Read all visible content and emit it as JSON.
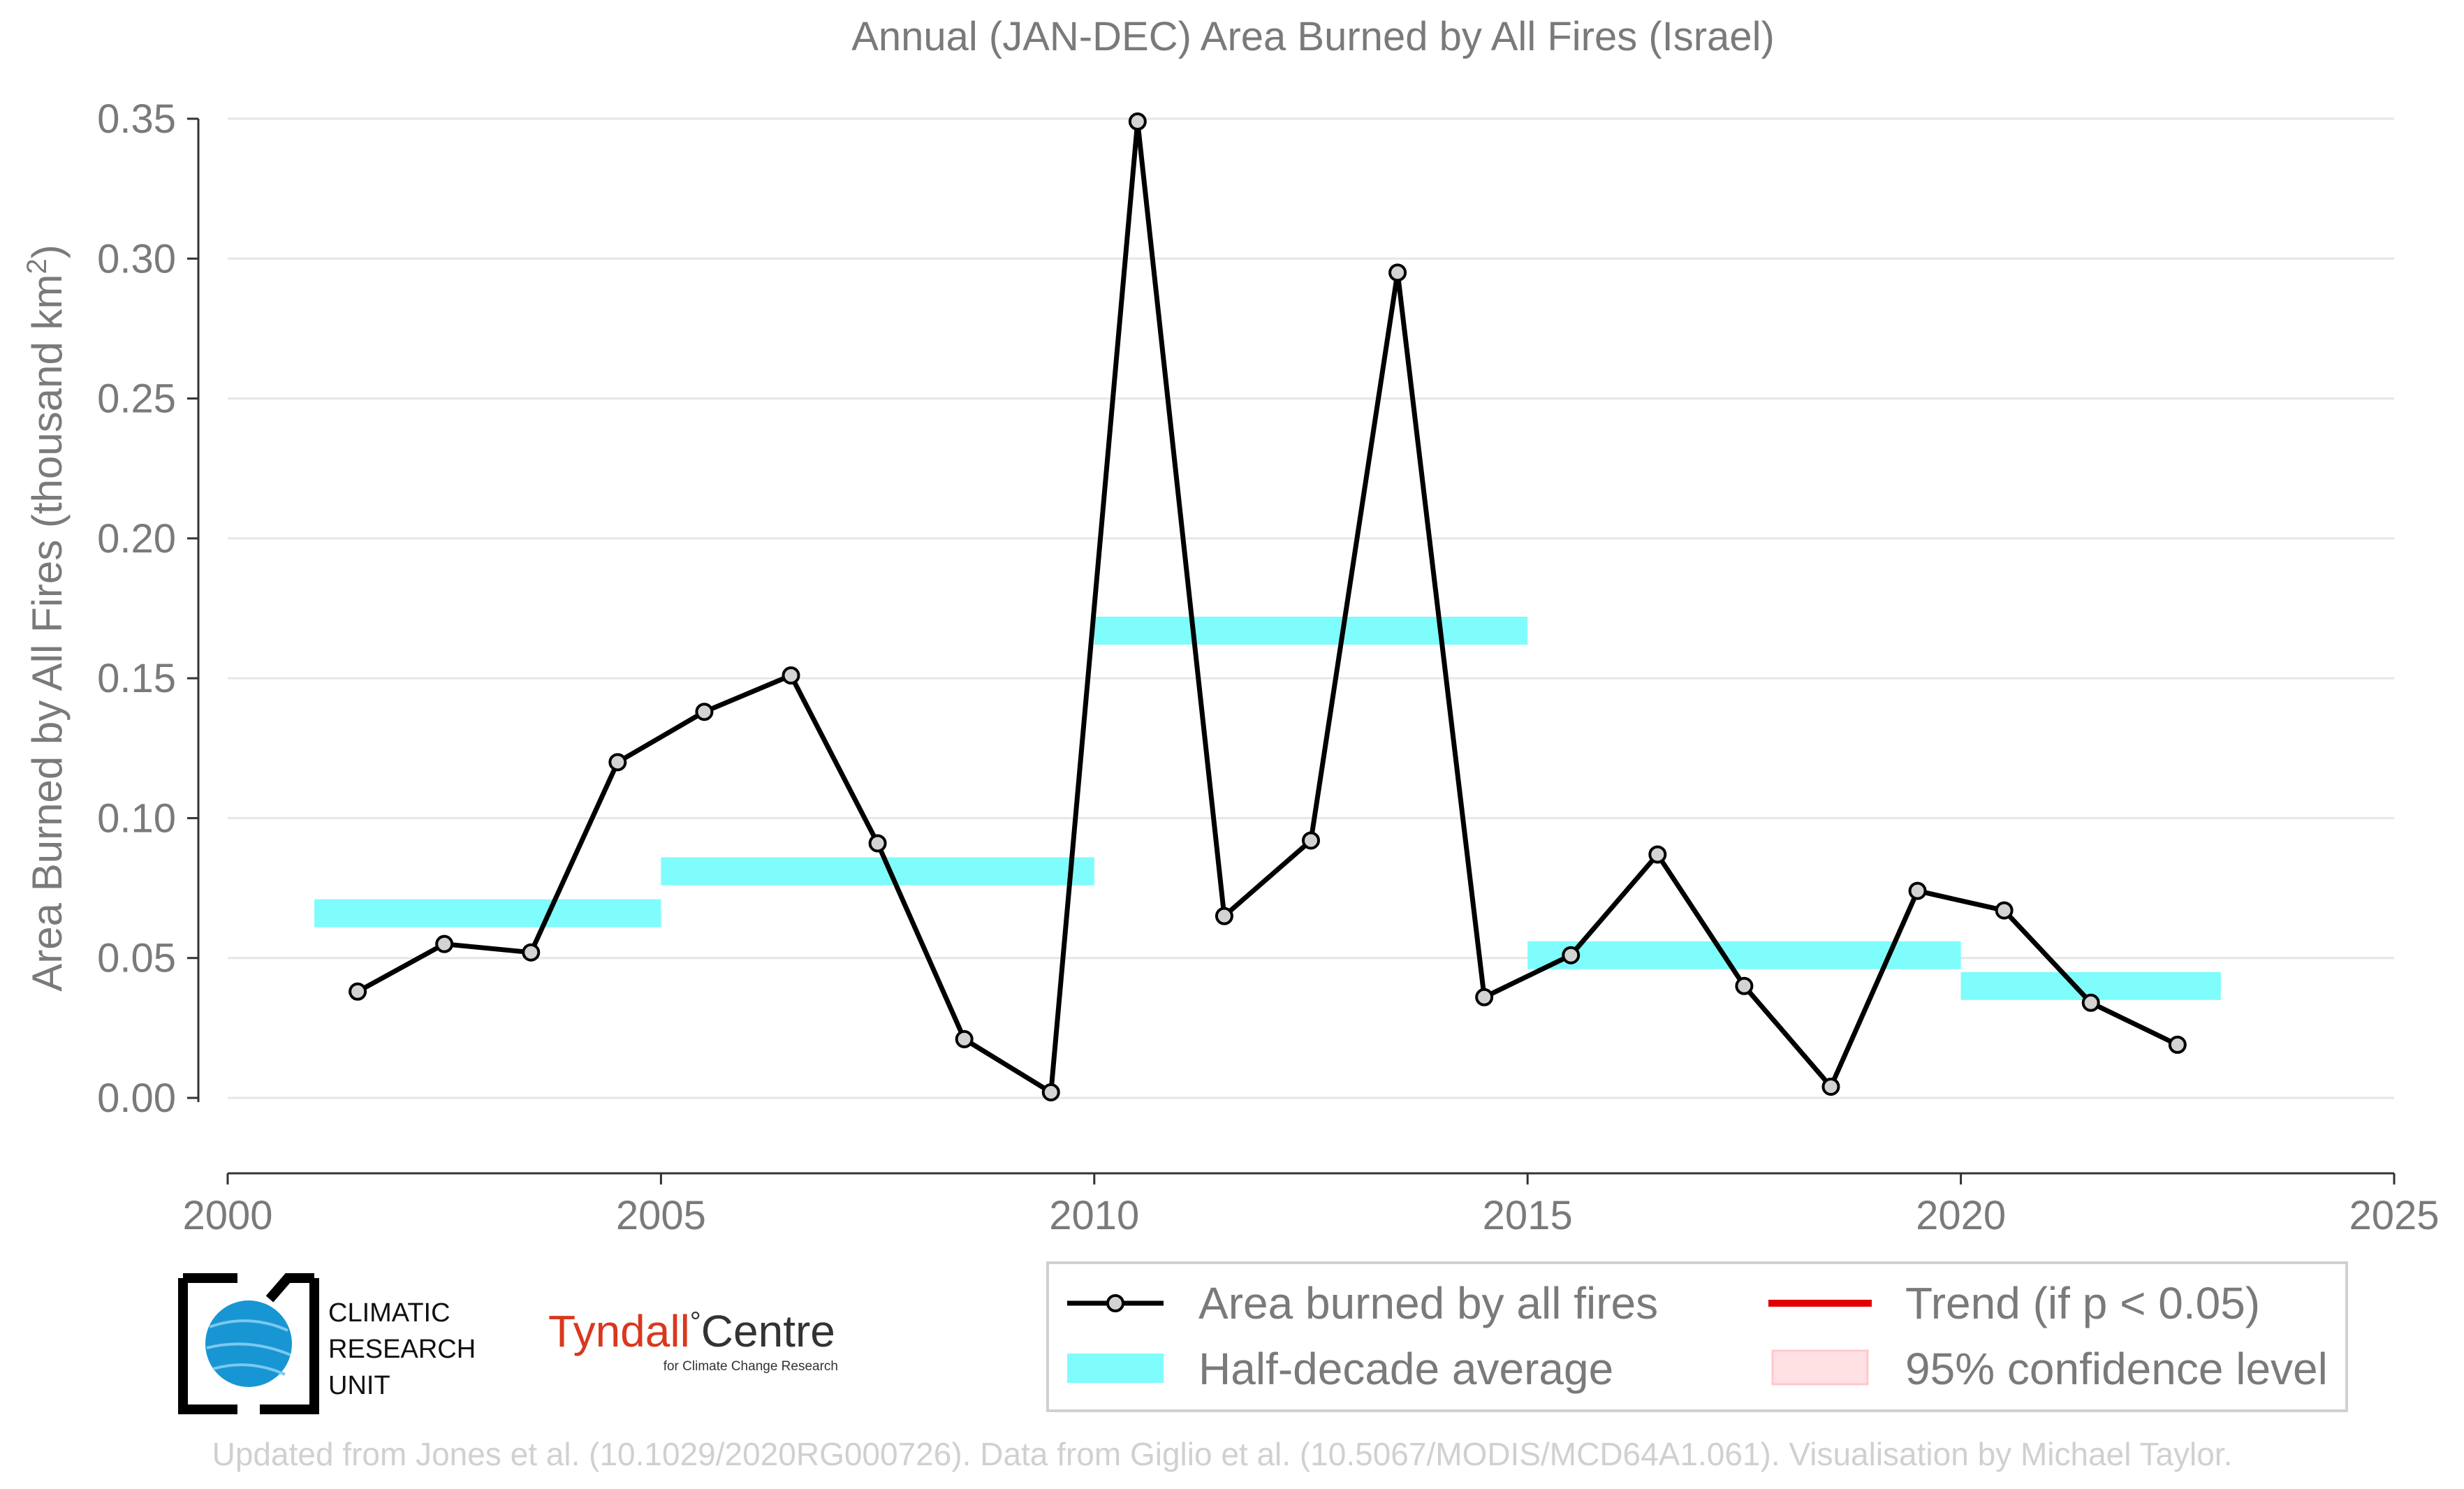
{
  "chart_data": {
    "type": "line",
    "title": "Annual (JAN-DEC) Area Burned by All Fires (Israel)",
    "ylabel_prefix": "Area Burned by All Fires (thousand km",
    "ylabel_sup": "2",
    "ylabel_suffix": ")",
    "xlabel": "",
    "xlim": [
      2000,
      2025
    ],
    "ylim": [
      0.0,
      0.35
    ],
    "x_ticks": [
      "2000",
      "2005",
      "2010",
      "2015",
      "2020",
      "2025"
    ],
    "y_ticks": [
      "0.00",
      "0.05",
      "0.10",
      "0.15",
      "0.20",
      "0.25",
      "0.30",
      "0.35"
    ],
    "grid": "horizontal",
    "series": [
      {
        "name": "Area burned by all fires",
        "color": "#000000",
        "marker_fill": "#d3d3d3",
        "x": [
          2001.5,
          2002.5,
          2003.5,
          2004.5,
          2005.5,
          2006.5,
          2007.5,
          2008.5,
          2009.5,
          2010.5,
          2011.5,
          2012.5,
          2013.5,
          2014.5,
          2015.5,
          2016.5,
          2017.5,
          2018.5,
          2019.5,
          2020.5,
          2021.5,
          2022.5
        ],
        "y": [
          0.038,
          0.055,
          0.052,
          0.12,
          0.138,
          0.151,
          0.091,
          0.021,
          0.002,
          0.349,
          0.065,
          0.092,
          0.295,
          0.036,
          0.051,
          0.087,
          0.04,
          0.004,
          0.074,
          0.067,
          0.034,
          0.019
        ]
      }
    ],
    "half_decade_averages": {
      "name": "Half-decade average",
      "color": "#7ffcfc",
      "segments": [
        {
          "x0": 2001,
          "x1": 2005,
          "y": 0.066
        },
        {
          "x0": 2005,
          "x1": 2010,
          "y": 0.081
        },
        {
          "x0": 2010,
          "x1": 2015,
          "y": 0.167
        },
        {
          "x0": 2015,
          "x1": 2020,
          "y": 0.051
        },
        {
          "x0": 2020,
          "x1": 2023,
          "y": 0.04
        }
      ]
    },
    "legend": {
      "placement": "bottom",
      "entries": [
        {
          "label": "Area burned by all fires",
          "kind": "line-marker",
          "color": "#000000"
        },
        {
          "label": "Trend (if p < 0.05)",
          "kind": "line",
          "color": "#e00000"
        },
        {
          "label": "Half-decade average",
          "kind": "band",
          "color": "#7ffcfc"
        },
        {
          "label": "95% confidence level",
          "kind": "patch",
          "color": "#ffe0e3"
        }
      ]
    }
  },
  "logos": {
    "cru_line1": "CLIMATIC",
    "cru_line2": "RESEARCH",
    "cru_line3": "UNIT",
    "tyndall_name": "Tyndall",
    "tyndall_degree": "°",
    "tyndall_centre": "Centre",
    "tyndall_sub": "for Climate Change Research"
  },
  "footer": "Updated from Jones et al. (10.1029/2020RG000726). Data from Giglio et al. (10.5067/MODIS/MCD64A1.061). Visualisation by Michael Taylor."
}
